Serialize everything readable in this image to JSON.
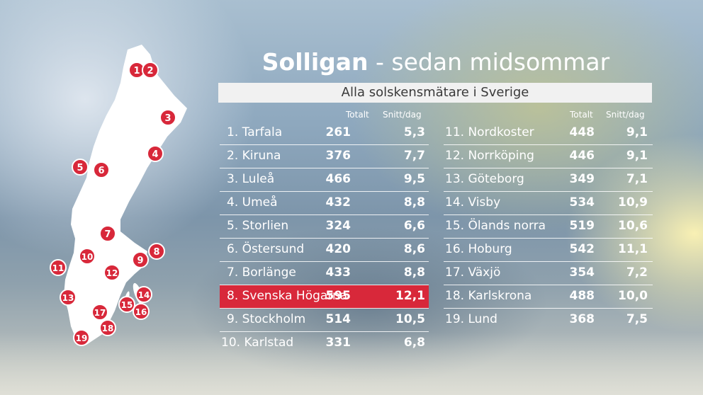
{
  "title": {
    "bold": "Solligan",
    "rest": " - sedan midsommar"
  },
  "subtitle": "Alla solskensmätare i Sverige",
  "headers": {
    "total": "Totalt",
    "avg": "Snitt/dag"
  },
  "highlight_color": "#d8283a",
  "left_rows": [
    {
      "name": "1. Tarfala",
      "total": "261",
      "avg": "5,3"
    },
    {
      "name": "2. Kiruna",
      "total": "376",
      "avg": "7,7"
    },
    {
      "name": "3. Luleå",
      "total": "466",
      "avg": "9,5"
    },
    {
      "name": "4. Umeå",
      "total": "432",
      "avg": "8,8"
    },
    {
      "name": "5. Storlien",
      "total": "324",
      "avg": "6,6"
    },
    {
      "name": "6. Östersund",
      "total": "420",
      "avg": "8,6"
    },
    {
      "name": "7. Borlänge",
      "total": "433",
      "avg": "8,8"
    },
    {
      "name": "8. Svenska Högarna",
      "total": "595",
      "avg": "12,1"
    },
    {
      "name": "9. Stockholm",
      "total": "514",
      "avg": "10,5"
    },
    {
      "name": "10. Karlstad",
      "total": "331",
      "avg": "6,8"
    }
  ],
  "right_rows": [
    {
      "name": "11. Nordkoster",
      "total": "448",
      "avg": "9,1"
    },
    {
      "name": "12. Norrköping",
      "total": "446",
      "avg": "9,1"
    },
    {
      "name": "13. Göteborg",
      "total": "349",
      "avg": "7,1"
    },
    {
      "name": "14. Visby",
      "total": "534",
      "avg": "10,9"
    },
    {
      "name": "15. Ölands norra",
      "total": "519",
      "avg": "10,6"
    },
    {
      "name": "16. Hoburg",
      "total": "542",
      "avg": "11,1"
    },
    {
      "name": "17. Växjö",
      "total": "354",
      "avg": "7,2"
    },
    {
      "name": "18. Karlskrona",
      "total": "488",
      "avg": "10,0"
    },
    {
      "name": "19. Lund",
      "total": "368",
      "avg": "7,5"
    }
  ],
  "map_markers": [
    "1",
    "2",
    "3",
    "4",
    "5",
    "6",
    "7",
    "8",
    "9",
    "10",
    "11",
    "12",
    "13",
    "14",
    "15",
    "16",
    "17",
    "18",
    "19"
  ]
}
